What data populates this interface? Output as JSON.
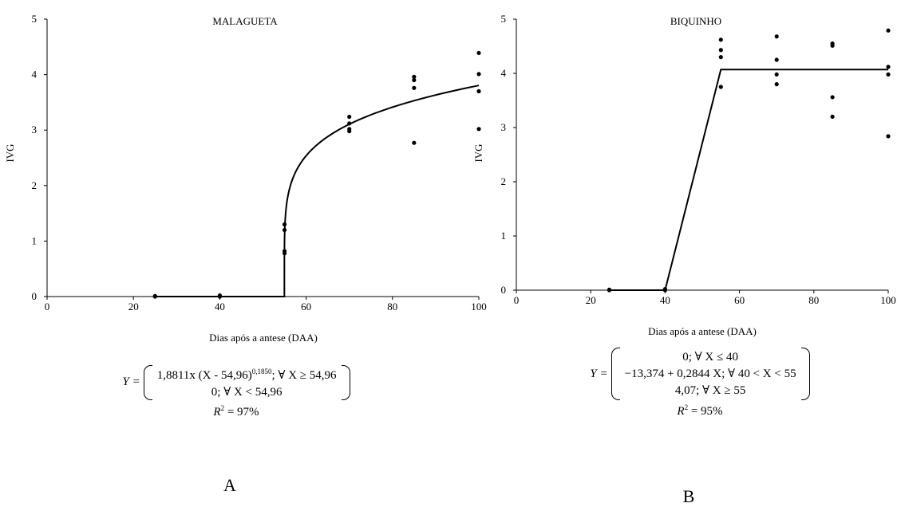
{
  "chart_data": [
    {
      "type": "scatter",
      "panel_label": "A",
      "title": "MALAGUETA",
      "xlabel": "Dias após a antese (DAA)",
      "ylabel": "IVG",
      "xlim": [
        0,
        100
      ],
      "ylim": [
        0,
        5
      ],
      "x_ticks": [
        "0",
        "20",
        "40",
        "60",
        "80",
        "100"
      ],
      "y_ticks": [
        "0",
        "1",
        "2",
        "3",
        "4",
        "5"
      ],
      "grid": false,
      "points": [
        {
          "x": 25,
          "y": 0.0
        },
        {
          "x": 25,
          "y": 0.01
        },
        {
          "x": 40,
          "y": 0.0
        },
        {
          "x": 40,
          "y": 0.02
        },
        {
          "x": 55,
          "y": 0.78
        },
        {
          "x": 55,
          "y": 0.82
        },
        {
          "x": 55,
          "y": 1.2
        },
        {
          "x": 55,
          "y": 1.3
        },
        {
          "x": 70,
          "y": 2.98
        },
        {
          "x": 70,
          "y": 3.02
        },
        {
          "x": 70,
          "y": 3.12
        },
        {
          "x": 70,
          "y": 3.24
        },
        {
          "x": 85,
          "y": 2.77
        },
        {
          "x": 85,
          "y": 3.76
        },
        {
          "x": 85,
          "y": 3.9
        },
        {
          "x": 85,
          "y": 3.96
        },
        {
          "x": 100,
          "y": 3.02
        },
        {
          "x": 100,
          "y": 3.7
        },
        {
          "x": 100,
          "y": 4.01
        },
        {
          "x": 100,
          "y": 4.39
        }
      ],
      "fit": {
        "model": "power_threshold",
        "a": 1.8811,
        "c": 54.96,
        "b": 0.185,
        "x_start": 25,
        "x_end": 100
      },
      "equation": {
        "lhs": "Y =",
        "case1_main": "1,8811x  (X - 54,96)",
        "case1_sup": "0,1850",
        "case1_cond": "; ∀ X ≥ 54,96",
        "case2": "0; ∀ X < 54,96",
        "r2_var": "R",
        "r2_sup": "2",
        "r2_value": " = 97%"
      }
    },
    {
      "type": "scatter",
      "panel_label": "B",
      "title": "BIQUINHO",
      "xlabel": "Dias após a antese (DAA)",
      "ylabel": "IVG",
      "xlim": [
        0,
        100
      ],
      "ylim": [
        0,
        5
      ],
      "x_ticks": [
        "0",
        "20",
        "40",
        "60",
        "80",
        "100"
      ],
      "y_ticks": [
        "0",
        "1",
        "2",
        "3",
        "4",
        "5"
      ],
      "grid": false,
      "points": [
        {
          "x": 25,
          "y": 0.0
        },
        {
          "x": 25,
          "y": 0.01
        },
        {
          "x": 40,
          "y": 0.0
        },
        {
          "x": 40,
          "y": 0.02
        },
        {
          "x": 55,
          "y": 3.75
        },
        {
          "x": 55,
          "y": 4.3
        },
        {
          "x": 55,
          "y": 4.43
        },
        {
          "x": 55,
          "y": 4.62
        },
        {
          "x": 70,
          "y": 3.8
        },
        {
          "x": 70,
          "y": 3.98
        },
        {
          "x": 70,
          "y": 4.25
        },
        {
          "x": 70,
          "y": 4.68
        },
        {
          "x": 85,
          "y": 3.2
        },
        {
          "x": 85,
          "y": 3.56
        },
        {
          "x": 85,
          "y": 4.51
        },
        {
          "x": 85,
          "y": 4.55
        },
        {
          "x": 100,
          "y": 2.84
        },
        {
          "x": 100,
          "y": 3.98
        },
        {
          "x": 100,
          "y": 4.12
        },
        {
          "x": 100,
          "y": 4.79
        }
      ],
      "fit": {
        "model": "linear_plateau",
        "intercept": -13.374,
        "slope": 0.2844,
        "plateau": 4.07,
        "x_low": 40,
        "x_high": 55,
        "x_start": 25,
        "x_end": 100
      },
      "equation": {
        "lhs": "Y =",
        "case1": "0; ∀ X ≤ 40",
        "case2": "−13,374 + 0,2844 X; ∀ 40 < X < 55",
        "case3": "4,07; ∀ X ≥ 55",
        "r2_var": "R",
        "r2_sup": "2",
        "r2_value": " = 95%"
      }
    }
  ]
}
